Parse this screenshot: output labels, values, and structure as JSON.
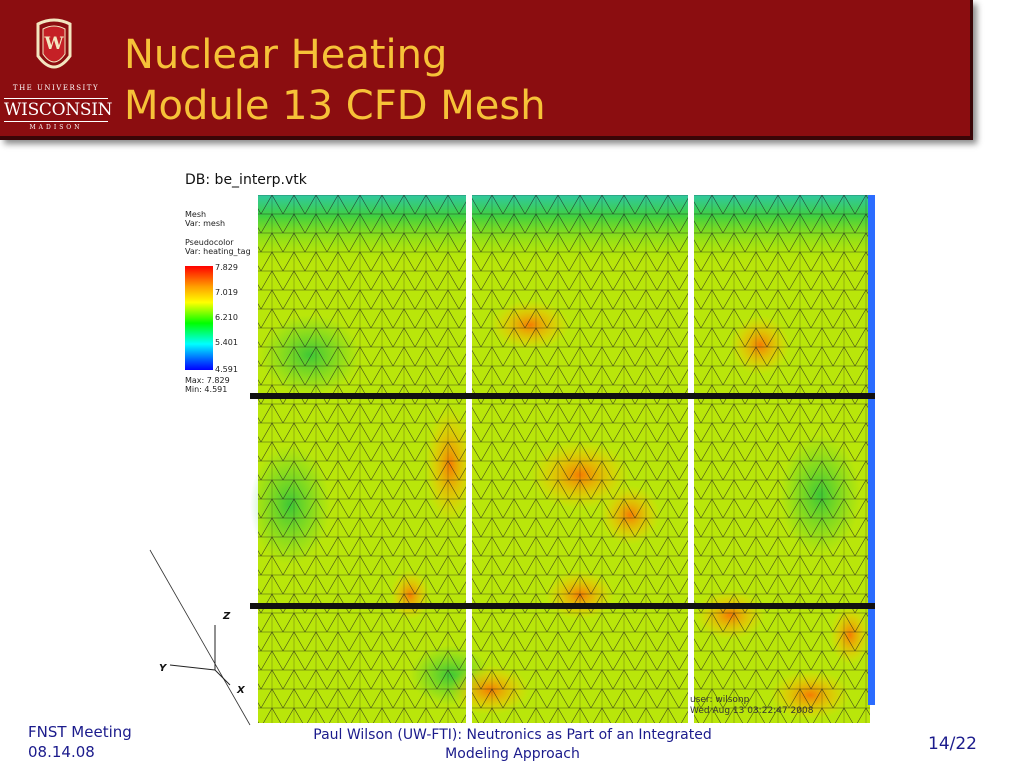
{
  "header": {
    "logo": {
      "line1": "THE UNIVERSITY",
      "line2": "WISCONSIN",
      "line3": "MADISON",
      "crest_letter": "W"
    },
    "title_line1": "Nuclear Heating",
    "title_line2": "Module 13 CFD Mesh",
    "colors": {
      "background": "#8b0d10",
      "title": "#f6c238"
    }
  },
  "figure": {
    "db_label": "DB: be_interp.vtk",
    "legend": {
      "mesh_label": "Mesh",
      "mesh_var": "Var: mesh",
      "plot_label": "Pseudocolor",
      "plot_var": "Var: heating_tag",
      "ticks": [
        "7.829",
        "7.019",
        "6.210",
        "5.401",
        "4.591"
      ],
      "max": "Max: 7.829",
      "min": "Min: 4.591"
    },
    "axes": {
      "z": "Z",
      "y": "Y",
      "x": "X"
    },
    "user_line1": "user: wilsonp",
    "user_line2": "Wed Aug 13 03:22:47 2008"
  },
  "footer": {
    "meeting": "FNST Meeting",
    "date": "08.14.08",
    "center_line1": "Paul Wilson (UW-FTI): Neutronics as Part of an Integrated",
    "center_line2": "Modeling Approach",
    "page": "14/22"
  }
}
